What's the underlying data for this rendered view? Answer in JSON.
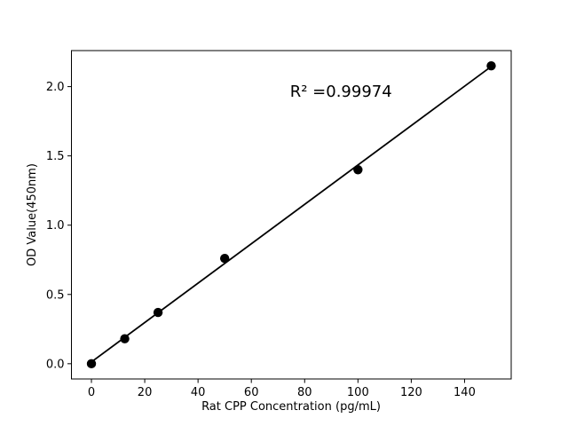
{
  "chart_data": {
    "type": "scatter",
    "xlabel": "Rat CPP Concentration (pg/mL)",
    "ylabel": "OD Value(450nm)",
    "points": {
      "x": [
        0,
        12.5,
        25,
        50,
        100,
        150
      ],
      "y": [
        0.0,
        0.18,
        0.37,
        0.76,
        1.4,
        2.15
      ]
    },
    "fit_line": {
      "x": [
        0,
        150
      ],
      "y": [
        0.013,
        2.145
      ]
    },
    "annotation": {
      "text": "R² =0.99974",
      "x": 74.5,
      "y": 1.93
    },
    "xticks": [
      0,
      20,
      40,
      60,
      80,
      100,
      120,
      140
    ],
    "xtick_labels": [
      "0",
      "20",
      "40",
      "60",
      "80",
      "100",
      "120",
      "140"
    ],
    "yticks": [
      0.0,
      0.5,
      1.0,
      1.5,
      2.0
    ],
    "ytick_labels": [
      "0.0",
      "0.5",
      "1.0",
      "1.5",
      "2.0"
    ],
    "xlim": [
      -7.5,
      157.5
    ],
    "ylim": [
      -0.11,
      2.26
    ],
    "grid": false,
    "legend": "none",
    "marker": "filled-circle",
    "marker_size_px": 5.2,
    "colors": {
      "marker": "#000000",
      "line": "#000000",
      "axes": "#000000",
      "text": "#000000",
      "background": "#ffffff"
    }
  }
}
